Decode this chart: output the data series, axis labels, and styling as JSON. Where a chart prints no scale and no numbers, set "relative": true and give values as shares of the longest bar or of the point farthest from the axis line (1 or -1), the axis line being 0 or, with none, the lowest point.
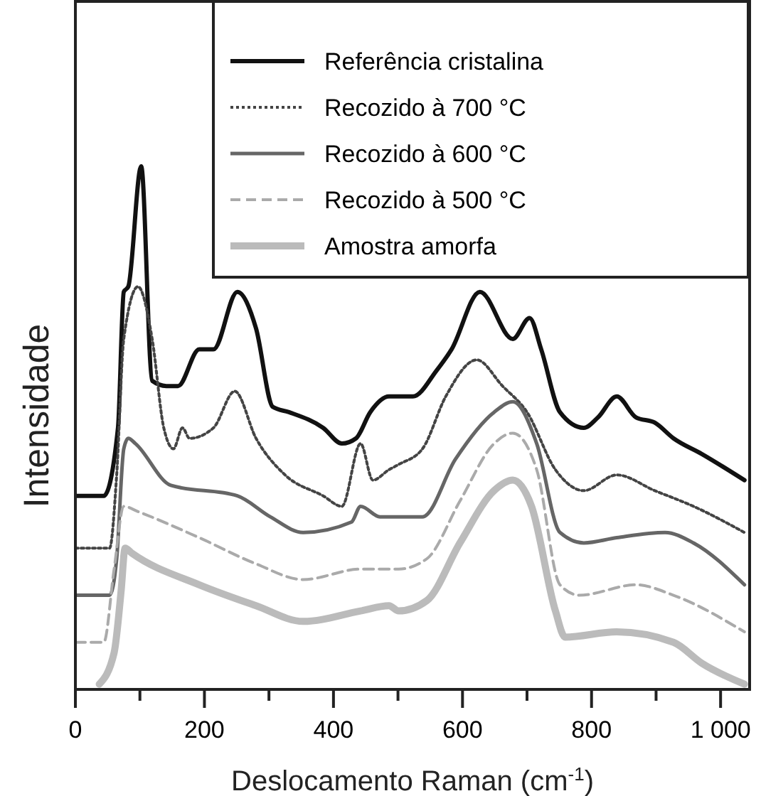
{
  "chart_data": {
    "type": "line",
    "relative": true,
    "xlabel": "Deslocamento Raman (cm$^{-1}$)",
    "ylabel": "Intensidade",
    "xlim": [
      0,
      1045
    ],
    "xticks": [
      0,
      {
        "value": 100,
        "label": null
      },
      200,
      {
        "value": 300,
        "label": null
      },
      400,
      {
        "value": 500,
        "label": null
      },
      600,
      {
        "value": 700,
        "label": null
      },
      800,
      {
        "value": 900,
        "label": null
      },
      {
        "value": 1000,
        "label": "1 000"
      }
    ],
    "legend": "top right",
    "grid": false,
    "marker": "none",
    "series": [
      {
        "name": "Referência cristalina",
        "color": "#111111",
        "line_style": "solid",
        "x": [
          0,
          44,
          66,
          75,
          82,
          102,
          119,
          141,
          159,
          192,
          214,
          251,
          280,
          306,
          331,
          384,
          413,
          435,
          457,
          486,
          501,
          523,
          560,
          583,
          627,
          678,
          704,
          722,
          751,
          788,
          810,
          839,
          869,
          898,
          927,
          971,
          1037
        ],
        "values": [
          0.37,
          0.37,
          0.5,
          0.76,
          0.77,
          1,
          0.59,
          0.58,
          0.58,
          0.65,
          0.65,
          0.76,
          0.69,
          0.54,
          0.53,
          0.5,
          0.47,
          0.48,
          0.53,
          0.56,
          0.56,
          0.56,
          0.61,
          0.65,
          0.76,
          0.67,
          0.71,
          0.65,
          0.53,
          0.5,
          0.52,
          0.56,
          0.52,
          0.51,
          0.48,
          0.45,
          0.4
        ]
      },
      {
        "name": "Recozido à 700 °C",
        "color": "#444444",
        "line_style": "dotted",
        "x": [
          0,
          53,
          64,
          75,
          97,
          119,
          137,
          152,
          166,
          177,
          214,
          247,
          280,
          325,
          384,
          413,
          442,
          461,
          486,
          501,
          538,
          574,
          622,
          662,
          700,
          744,
          788,
          839,
          898,
          958,
          1037
        ],
        "values": [
          0.27,
          0.27,
          0.41,
          0.67,
          0.77,
          0.67,
          0.5,
          0.46,
          0.5,
          0.48,
          0.5,
          0.57,
          0.48,
          0.41,
          0.37,
          0.35,
          0.47,
          0.4,
          0.42,
          0.43,
          0.46,
          0.56,
          0.63,
          0.58,
          0.53,
          0.42,
          0.38,
          0.41,
          0.38,
          0.35,
          0.3
        ]
      },
      {
        "name": "Recozido à 600 °C",
        "color": "#666666",
        "line_style": "solid",
        "x": [
          0,
          53,
          64,
          75,
          82,
          93,
          148,
          251,
          302,
          353,
          428,
          442,
          472,
          501,
          538,
          589,
          649,
          678,
          715,
          751,
          788,
          839,
          914,
          958,
          1037
        ],
        "values": [
          0.18,
          0.18,
          0.25,
          0.46,
          0.48,
          0.47,
          0.39,
          0.37,
          0.33,
          0.3,
          0.32,
          0.35,
          0.33,
          0.33,
          0.33,
          0.44,
          0.53,
          0.55,
          0.47,
          0.3,
          0.28,
          0.29,
          0.3,
          0.28,
          0.2
        ]
      },
      {
        "name": "Recozido à 500 °C",
        "color": "#aaaaaa",
        "line_style": "dashed",
        "x": [
          0,
          44,
          60,
          75,
          97,
          192,
          280,
          353,
          442,
          501,
          545,
          596,
          649,
          678,
          715,
          751,
          781,
          869,
          927,
          1037
        ],
        "values": [
          0.09,
          0.09,
          0.23,
          0.35,
          0.34,
          0.29,
          0.24,
          0.21,
          0.23,
          0.23,
          0.25,
          0.36,
          0.47,
          0.49,
          0.42,
          0.2,
          0.18,
          0.2,
          0.18,
          0.11
        ]
      },
      {
        "name": "Amostra amorfa",
        "color": "#bbbbbb",
        "line_style": "solid",
        "x": [
          37,
          60,
          71,
          77,
          88,
          192,
          280,
          353,
          442,
          486,
          501,
          545,
          596,
          649,
          678,
          707,
          744,
          759,
          839,
          927,
          971,
          1037
        ],
        "values": [
          0.01,
          0.07,
          0.19,
          0.27,
          0.26,
          0.2,
          0.16,
          0.13,
          0.15,
          0.16,
          0.15,
          0.17,
          0.28,
          0.38,
          0.4,
          0.35,
          0.15,
          0.1,
          0.11,
          0.09,
          0.05,
          0.01
        ]
      }
    ]
  }
}
